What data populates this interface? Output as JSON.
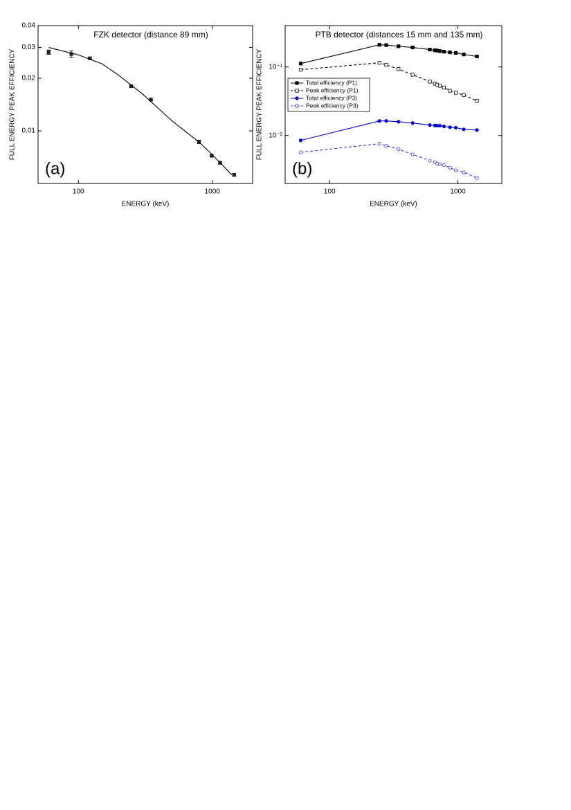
{
  "chart_data": [
    {
      "type": "line",
      "title": "FZK detector (distance 89 mm)",
      "annotation": "(a)",
      "x_label": "ENERGY (keV)",
      "y_label": "FULL ENERGY PEAK EFFICIENCY",
      "xscale": "log",
      "yscale": "log",
      "xlim": [
        50,
        2000
      ],
      "ylim": [
        0.005,
        0.04
      ],
      "xticks": [
        100,
        1000
      ],
      "yticks": [
        0.01,
        0.02,
        0.03,
        0.04
      ],
      "series": [
        {
          "x": [
            60,
            88.6,
            122,
            248,
            348,
            795,
            990,
            1143,
            1455
          ],
          "values": [
            0.0282,
            0.0275,
            0.026,
            0.018,
            0.0151,
            0.00865,
            0.0072,
            0.00656,
            0.0056
          ],
          "errors": [
            0.0008,
            0.0012,
            0.0004,
            0.0003,
            0.0002,
            0.0002,
            0.0001,
            0.0001,
            0.0001
          ],
          "color": "#222222",
          "marker": "square",
          "filled": true,
          "linestyle": "none"
        },
        {
          "x": [
            60,
            100,
            150,
            200,
            300,
            500,
            800,
            1000,
            1400
          ],
          "values": [
            0.03,
            0.0272,
            0.0242,
            0.0208,
            0.0163,
            0.0114,
            0.0086,
            0.0073,
            0.0056
          ],
          "color": "#000000",
          "marker": "none",
          "linestyle": "solid"
        }
      ]
    },
    {
      "type": "line",
      "title": "PTB detector (distances 15 mm and 135 mm)",
      "annotation": "(b)",
      "x_label": "ENERGY (keV)",
      "y_label": "FULL ENERGY PEAK EFFICIENCY",
      "xscale": "log",
      "yscale": "log",
      "xlim": [
        45,
        2200
      ],
      "ylim": [
        0.002,
        0.4
      ],
      "xticks": [
        100,
        1000
      ],
      "yticks": [
        {
          "value": 0.01,
          "label": "10⁻²"
        },
        {
          "value": 0.1,
          "label": "10⁻¹"
        }
      ],
      "legend": "upper left",
      "x": [
        59.5,
        244.7,
        276.4,
        344.3,
        443.9,
        604.7,
        661.7,
        688.7,
        723.3,
        778.9,
        867.4,
        964.1,
        1112.1,
        1408
      ],
      "series": [
        {
          "name": "Total efficiency (P1)",
          "color": "#000000",
          "marker": "square",
          "filled": true,
          "linestyle": "solid",
          "values": [
            0.112,
            0.21,
            0.208,
            0.2,
            0.192,
            0.179,
            0.175,
            0.173,
            0.17,
            0.167,
            0.163,
            0.16,
            0.152,
            0.142
          ]
        },
        {
          "name": "Peak efficiency (P1)",
          "color": "#000000",
          "marker": "square",
          "filled": false,
          "linestyle": "dashed",
          "values": [
            0.091,
            0.115,
            0.107,
            0.093,
            0.077,
            0.061,
            0.057,
            0.055,
            0.053,
            0.05,
            0.045,
            0.042,
            0.039,
            0.032
          ]
        },
        {
          "name": "Total efficiency (P3)",
          "color": "#0000cc",
          "marker": "circle",
          "filled": true,
          "linestyle": "solid",
          "values": [
            0.0085,
            0.0163,
            0.0163,
            0.0159,
            0.0152,
            0.0142,
            0.014,
            0.0139,
            0.0139,
            0.0136,
            0.0132,
            0.013,
            0.0123,
            0.012
          ]
        },
        {
          "name": "Peak efficiency (P3)",
          "color": "#3333cc",
          "marker": "circle",
          "filled": false,
          "linestyle": "dashed",
          "values": [
            0.0057,
            0.0076,
            0.0071,
            0.0063,
            0.0053,
            0.0043,
            0.0041,
            0.0039,
            0.0038,
            0.0037,
            0.0034,
            0.0031,
            0.0029,
            0.0024
          ]
        }
      ]
    }
  ]
}
